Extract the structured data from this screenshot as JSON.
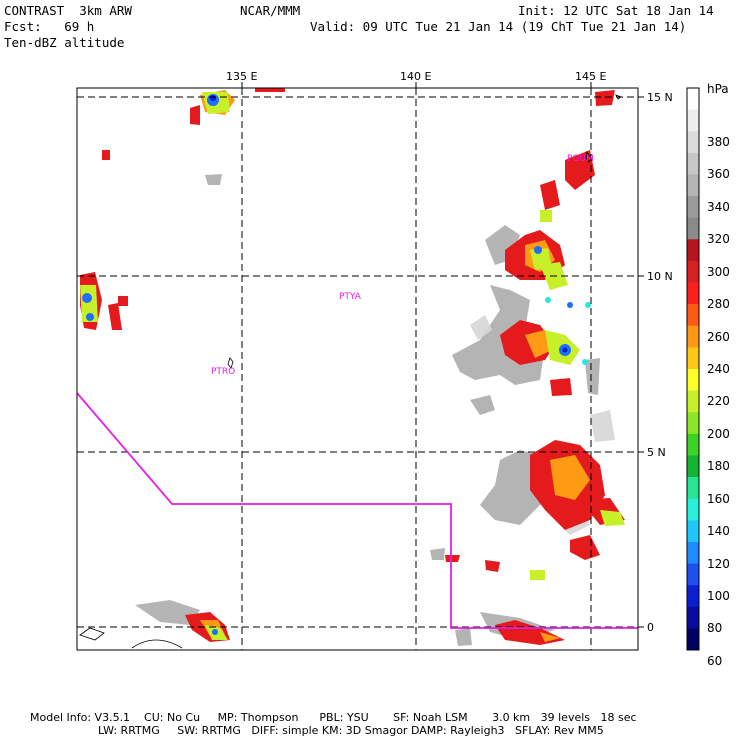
{
  "header": {
    "left_line1": "CONTRAST  3km ARW",
    "left_line2": "Fcst:   69 h",
    "left_line3": "Ten-dBZ altitude",
    "center": "NCAR/MMM",
    "right_line1": "Init: 12 UTC Sat 18 Jan 14",
    "right_line2": "Valid: 09 UTC Tue 21 Jan 14 (19 ChT Tue 21 Jan 14)"
  },
  "axes": {
    "lon_labels": [
      "135 E",
      "140 E",
      "145 E"
    ],
    "lat_labels": [
      "15 N",
      "10 N",
      "5 N",
      "0"
    ]
  },
  "stations": [
    "PGUM",
    "PTYA",
    "PTRO"
  ],
  "colorbar": {
    "unit": "hPa",
    "labels": [
      "380",
      "360",
      "340",
      "320",
      "300",
      "280",
      "260",
      "240",
      "220",
      "200",
      "180",
      "160",
      "140",
      "120",
      "100",
      "80",
      "60"
    ],
    "colors": [
      "#ffffff",
      "#eeeeee",
      "#dcdcdc",
      "#c8c8c8",
      "#b4b4b4",
      "#9b9b9b",
      "#8a8a8a",
      "#b8141e",
      "#d72020",
      "#ff1e1e",
      "#ff5a14",
      "#ff9616",
      "#ffc814",
      "#ffff28",
      "#c8f02a",
      "#8ce628",
      "#3cd228",
      "#14b432",
      "#28e696",
      "#28f0dc",
      "#1ec8ff",
      "#1e8cff",
      "#1e50f0",
      "#0a1ed2",
      "#0a0aa0",
      "#000064"
    ]
  },
  "footer": {
    "line1": "Model Info: V3.5.1    CU: No Cu     MP: Thompson      PBL: YSU       SF: Noah LSM       3.0 km   39 levels   18 sec",
    "line2": "LW: RRTMG     SW: RRTMG   DIFF: simple KM: 3D Smagor DAMP: Rayleigh3   SFLAY: Rev MM5"
  }
}
